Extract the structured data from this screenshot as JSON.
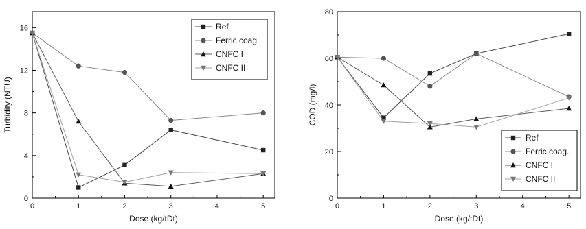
{
  "chart_data": [
    {
      "type": "line",
      "xlabel": "Dose (kg/tDt)",
      "ylabel": "Turbidity (NTU)",
      "xlim": [
        0,
        5.25
      ],
      "ylim": [
        0,
        17.5
      ],
      "x_ticks": [
        0,
        1,
        2,
        3,
        4,
        5
      ],
      "y_ticks": [
        0,
        4,
        8,
        12,
        16
      ],
      "grid": false,
      "legend_position": "top-right",
      "x": [
        0,
        1,
        2,
        3,
        5
      ],
      "series": [
        {
          "name": "Ref",
          "marker": "square",
          "values": [
            15.5,
            1.0,
            3.1,
            6.4,
            4.5
          ]
        },
        {
          "name": "Ferric coag.",
          "marker": "circle",
          "values": [
            15.5,
            12.4,
            11.8,
            7.3,
            8.0
          ]
        },
        {
          "name": "CNFC I",
          "marker": "triangle-up",
          "values": [
            15.5,
            7.2,
            1.4,
            1.1,
            2.3
          ]
        },
        {
          "name": "CNFC II",
          "marker": "triangle-down",
          "values": [
            15.5,
            2.2,
            1.5,
            2.4,
            2.3
          ]
        }
      ]
    },
    {
      "type": "line",
      "xlabel": "Dose (kg/tDt)",
      "ylabel": "COD (mg/l)",
      "xlim": [
        0,
        5.25
      ],
      "ylim": [
        0,
        80
      ],
      "x_ticks": [
        0,
        1,
        2,
        3,
        4,
        5
      ],
      "y_ticks": [
        0,
        20,
        40,
        60,
        80
      ],
      "grid": false,
      "legend_position": "bottom-right",
      "x": [
        0,
        1,
        2,
        3,
        5
      ],
      "series": [
        {
          "name": "Ref",
          "marker": "square",
          "values": [
            60.5,
            34.5,
            53.5,
            62.0,
            70.5
          ]
        },
        {
          "name": "Ferric coag.",
          "marker": "circle",
          "values": [
            60.5,
            60.0,
            48.0,
            62.0,
            43.5
          ]
        },
        {
          "name": "CNFC I",
          "marker": "triangle-up",
          "values": [
            60.5,
            48.5,
            30.5,
            34.0,
            38.5
          ]
        },
        {
          "name": "CNFC II",
          "marker": "triangle-down",
          "values": [
            60.5,
            33.0,
            32.0,
            30.5,
            43.0
          ]
        }
      ]
    }
  ]
}
